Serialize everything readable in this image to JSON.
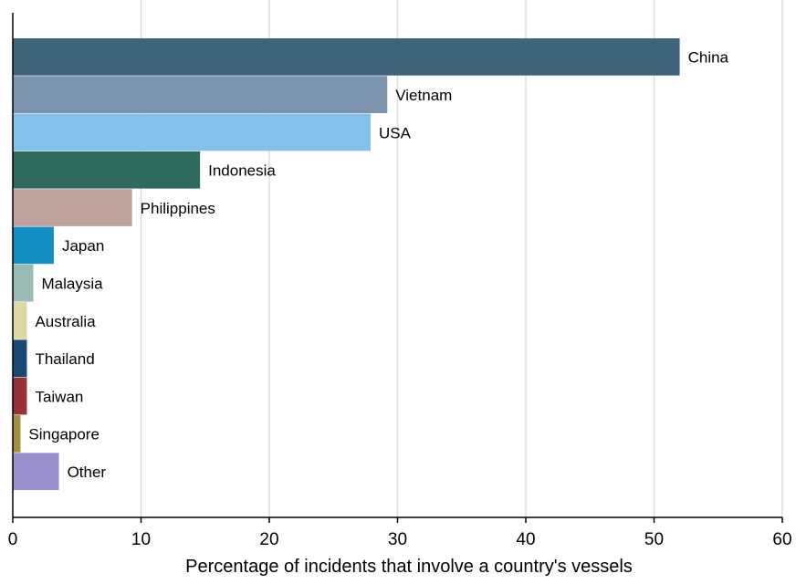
{
  "chart_data": {
    "type": "bar",
    "orientation": "horizontal",
    "title": "",
    "xlabel": "Percentage of incidents that involve a country's vessels",
    "ylabel": "",
    "xlim": [
      0,
      60
    ],
    "xticks": [
      0,
      10,
      20,
      30,
      40,
      50,
      60
    ],
    "grid": "vertical",
    "legend": "none",
    "categories": [
      "China",
      "Vietnam",
      "USA",
      "Indonesia",
      "Philippines",
      "Japan",
      "Malaysia",
      "Australia",
      "Thailand",
      "Taiwan",
      "Singapore",
      "Other"
    ],
    "values": [
      52.0,
      29.2,
      27.9,
      14.6,
      9.3,
      3.2,
      1.6,
      1.1,
      1.1,
      1.1,
      0.6,
      3.6
    ],
    "colors": [
      "#3e647c",
      "#7c93ae",
      "#82c2ea",
      "#2e6a5d",
      "#c0a39c",
      "#158ec4",
      "#98b9b4",
      "#ddd7a1",
      "#1b4975",
      "#963238",
      "#a28d42",
      "#9b8ecc"
    ]
  }
}
